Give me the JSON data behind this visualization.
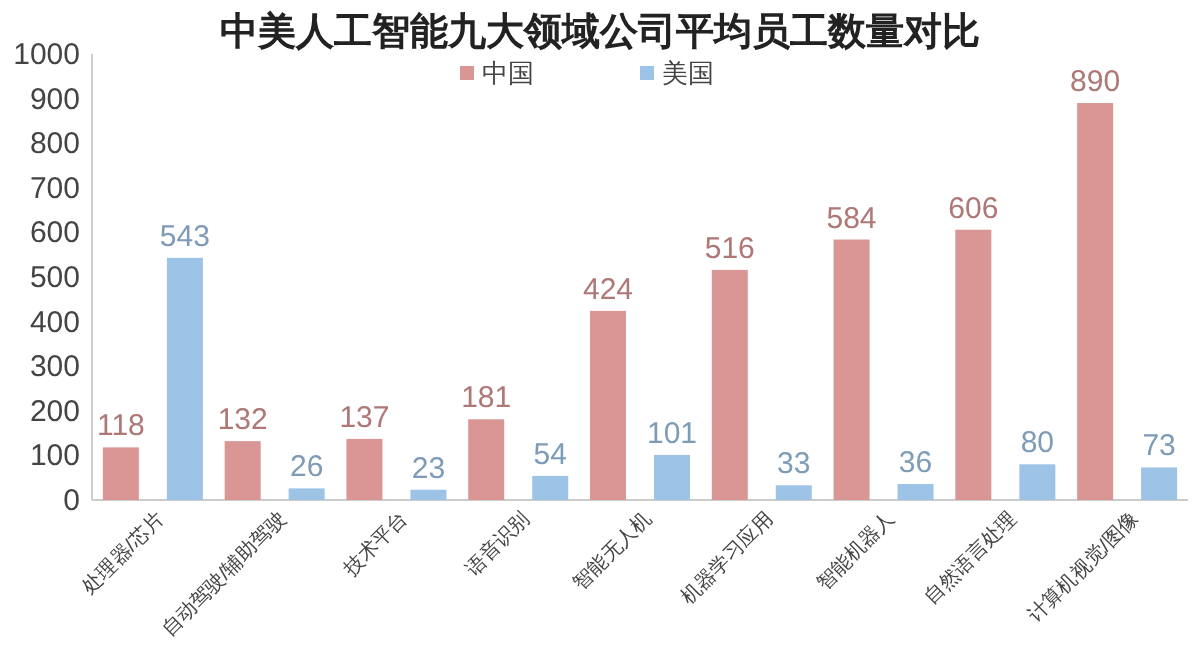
{
  "chart_data": {
    "type": "bar",
    "title": "中美人工智能九大领域公司平均员工数量对比",
    "categories": [
      "处理器/芯片",
      "自动驾驶/辅助驾驶",
      "技术平台",
      "语音识别",
      "智能无人机",
      "机器学习应用",
      "智能机器人",
      "自然语言处理",
      "计算机视觉/图像"
    ],
    "series": [
      {
        "name": "中国",
        "color": "#d99694",
        "values": [
          118,
          132,
          137,
          181,
          424,
          516,
          584,
          606,
          890
        ]
      },
      {
        "name": "美国",
        "color": "#9dc3e6",
        "values": [
          543,
          26,
          23,
          54,
          101,
          33,
          36,
          80,
          73
        ]
      }
    ],
    "ylim": [
      0,
      1000
    ],
    "yticks": [
      0,
      100,
      200,
      300,
      400,
      500,
      600,
      700,
      800,
      900,
      1000
    ],
    "data_labels": true,
    "legend": "top",
    "grid": false
  }
}
